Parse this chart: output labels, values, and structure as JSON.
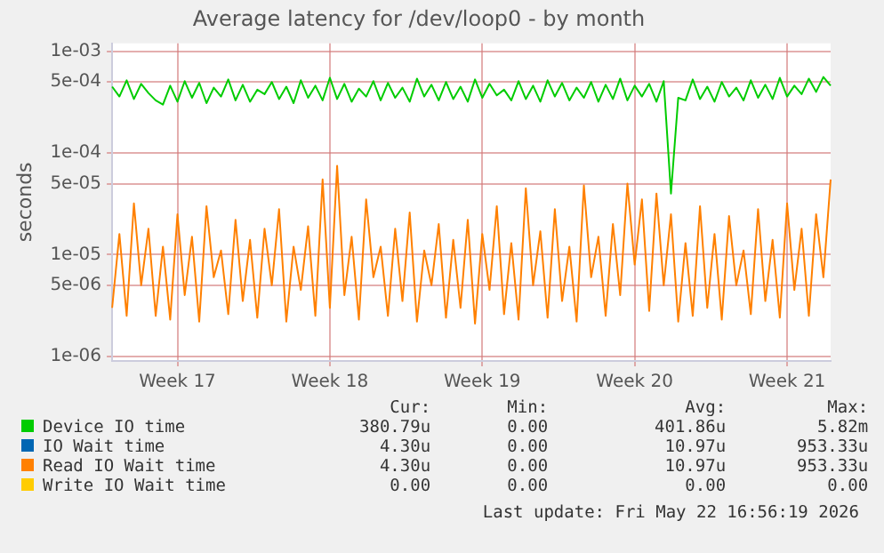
{
  "chart_data": {
    "type": "line",
    "title": "Average latency for /dev/loop0 - by month",
    "ylabel": "seconds",
    "log": true,
    "grid": true,
    "legend": "bottom",
    "marker": "none",
    "line_style": "solid",
    "categories": [
      null,
      null,
      null,
      null,
      null,
      null,
      null,
      null,
      null,
      "Week 17",
      null,
      null,
      null,
      null,
      null,
      null,
      null,
      null,
      null,
      null,
      null,
      null,
      null,
      null,
      null,
      null,
      null,
      null,
      null,
      null,
      "Week 18",
      null,
      null,
      null,
      null,
      null,
      null,
      null,
      null,
      null,
      null,
      null,
      null,
      null,
      null,
      null,
      null,
      null,
      null,
      null,
      null,
      "Week 19",
      null,
      null,
      null,
      null,
      null,
      null,
      null,
      null,
      null,
      null,
      null,
      null,
      null,
      null,
      null,
      null,
      null,
      null,
      null,
      null,
      "Week 20",
      null,
      null,
      null,
      null,
      null,
      null,
      null,
      null,
      null,
      null,
      null,
      null,
      null,
      null,
      null,
      null,
      null,
      null,
      null,
      null,
      "Week 21",
      null,
      null,
      null,
      null,
      null,
      null
    ],
    "ylim": [
      9e-07,
      0.0012
    ],
    "yticks": [
      {
        "value": 1e-06,
        "label": "1e-06"
      },
      {
        "value": 5e-06,
        "label": "5e-06"
      },
      {
        "value": 1e-05,
        "label": "1e-05"
      },
      {
        "value": 5e-05,
        "label": "5e-05"
      },
      {
        "value": 0.0001,
        "label": "1e-04"
      },
      {
        "value": 0.0005,
        "label": "5e-04"
      },
      {
        "value": 0.001,
        "label": "1e-03"
      }
    ],
    "series": [
      {
        "name": "Device IO time",
        "color": "#00cc00",
        "values": [
          0.00045,
          0.00036,
          0.00052,
          0.00034,
          0.00048,
          0.00039,
          0.00033,
          0.0003,
          0.00046,
          0.00032,
          0.00051,
          0.00035,
          0.00049,
          0.00031,
          0.00044,
          0.00036,
          0.00053,
          0.00033,
          0.00047,
          0.00032,
          0.00042,
          0.00038,
          0.0005,
          0.00034,
          0.00045,
          0.00031,
          0.00052,
          0.00035,
          0.00046,
          0.00033,
          0.00055,
          0.00034,
          0.00048,
          0.00032,
          0.00043,
          0.00036,
          0.00051,
          0.00033,
          0.00049,
          0.00035,
          0.00044,
          0.00032,
          0.00054,
          0.00036,
          0.00047,
          0.00033,
          0.0005,
          0.00034,
          0.00045,
          0.00032,
          0.00053,
          0.00035,
          0.00048,
          0.00037,
          0.00042,
          0.00033,
          0.00051,
          0.00034,
          0.00046,
          0.00032,
          0.00052,
          0.00036,
          0.00049,
          0.00033,
          0.00044,
          0.00035,
          0.0005,
          0.00032,
          0.00047,
          0.00034,
          0.00054,
          0.00033,
          0.00046,
          0.00036,
          0.00048,
          0.00032,
          0.00051,
          4e-05,
          0.00035,
          0.00033,
          0.00053,
          0.00034,
          0.00045,
          0.00032,
          0.0005,
          0.00036,
          0.00044,
          0.00033,
          0.00052,
          0.00035,
          0.00047,
          0.00034,
          0.00055,
          0.00036,
          0.00046,
          0.00038,
          0.00054,
          0.0004,
          0.00056,
          0.00046
        ]
      },
      {
        "name": "IO Wait time",
        "color": "#0066b3",
        "values": [
          null,
          null,
          null,
          null,
          null,
          null,
          null,
          null,
          null,
          null,
          null,
          null,
          null,
          null,
          null,
          null,
          null,
          null,
          null,
          null,
          null,
          null,
          null,
          null,
          null,
          null,
          null,
          null,
          null,
          null,
          null,
          null,
          null,
          null,
          null,
          null,
          null,
          null,
          null,
          null,
          null,
          null,
          null,
          null,
          null,
          null,
          null,
          null,
          null,
          null,
          null,
          null,
          null,
          null,
          null,
          null,
          null,
          null,
          null,
          null,
          null,
          null,
          null,
          null,
          null,
          null,
          null,
          null,
          null,
          null,
          null,
          null,
          null,
          null,
          null,
          null,
          null,
          null,
          null,
          null,
          null,
          null,
          null,
          null,
          null,
          null,
          null,
          null,
          null,
          null,
          null,
          null,
          null,
          null,
          null,
          null,
          null,
          null,
          null,
          null
        ]
      },
      {
        "name": "Read IO Wait time",
        "color": "#ff8000",
        "values": [
          3e-06,
          1.6e-05,
          2.5e-06,
          3.2e-05,
          5e-06,
          1.8e-05,
          2.5e-06,
          1.2e-05,
          2.3e-06,
          2.5e-05,
          4e-06,
          1.5e-05,
          2.2e-06,
          3e-05,
          6e-06,
          1.1e-05,
          2.6e-06,
          2.2e-05,
          3.5e-06,
          1.4e-05,
          2.4e-06,
          1.8e-05,
          5e-06,
          2.8e-05,
          2.2e-06,
          1.2e-05,
          4.5e-06,
          1.9e-05,
          2.5e-06,
          5.5e-05,
          3e-06,
          7.5e-05,
          4e-06,
          1.5e-05,
          2.3e-06,
          3.5e-05,
          6e-06,
          1.2e-05,
          2.5e-06,
          1.8e-05,
          3.5e-06,
          2.6e-05,
          2.2e-06,
          1.1e-05,
          5e-06,
          2e-05,
          2.4e-06,
          1.4e-05,
          3e-06,
          2.2e-05,
          2.1e-06,
          1.6e-05,
          4.5e-06,
          3e-05,
          2.6e-06,
          1.3e-05,
          2.3e-06,
          4.5e-05,
          5e-06,
          1.7e-05,
          2.4e-06,
          2.8e-05,
          3.5e-06,
          1.2e-05,
          2.2e-06,
          4.8e-05,
          6e-06,
          1.5e-05,
          2.5e-06,
          2e-05,
          4e-06,
          5e-05,
          8e-06,
          3.5e-05,
          2.8e-06,
          4e-05,
          5e-06,
          2.5e-05,
          2.2e-06,
          1.3e-05,
          2.5e-06,
          3e-05,
          3e-06,
          1.6e-05,
          2.3e-06,
          2.4e-05,
          5e-06,
          1.1e-05,
          2.6e-06,
          2.8e-05,
          3.5e-06,
          1.4e-05,
          2.4e-06,
          3.2e-05,
          4.5e-06,
          1.8e-05,
          2.5e-06,
          2.5e-05,
          6e-06,
          5.5e-05
        ]
      },
      {
        "name": "Write IO Wait time",
        "color": "#ffcc00",
        "values": [
          null,
          null,
          null,
          null,
          null,
          null,
          null,
          null,
          null,
          null,
          null,
          null,
          null,
          null,
          null,
          null,
          null,
          null,
          null,
          null,
          null,
          null,
          null,
          null,
          null,
          null,
          null,
          null,
          null,
          null,
          null,
          null,
          null,
          null,
          null,
          null,
          null,
          null,
          null,
          null,
          null,
          null,
          null,
          null,
          null,
          null,
          null,
          null,
          null,
          null,
          null,
          null,
          null,
          null,
          null,
          null,
          null,
          null,
          null,
          null,
          null,
          null,
          null,
          null,
          null,
          null,
          null,
          null,
          null,
          null,
          null,
          null,
          null,
          null,
          null,
          null,
          null,
          null,
          null,
          null,
          null,
          null,
          null,
          null,
          null,
          null,
          null,
          null,
          null,
          null,
          null,
          null,
          null,
          null,
          null,
          null,
          null,
          null,
          null,
          null
        ]
      }
    ],
    "annotations": [
      "Cur:",
      "Min:",
      "Avg:",
      "Max:",
      "380.79u",
      "0.00",
      "401.86u",
      "5.82m",
      "4.30u",
      "0.00",
      "10.97u",
      "953.33u",
      "4.30u",
      "0.00",
      "10.97u",
      "953.33u",
      "0.00",
      "0.00",
      "0.00",
      "0.00",
      "Last update: Fri May 22 16:56:19 2026"
    ]
  }
}
